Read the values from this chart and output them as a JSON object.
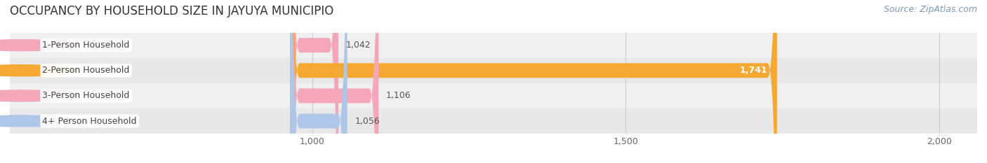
{
  "title": "OCCUPANCY BY HOUSEHOLD SIZE IN JAYUYA MUNICIPIO",
  "source": "Source: ZipAtlas.com",
  "categories": [
    "1-Person Household",
    "2-Person Household",
    "3-Person Household",
    "4+ Person Household"
  ],
  "values": [
    1042,
    1741,
    1106,
    1056
  ],
  "bar_colors": [
    "#f4a7b9",
    "#f5a832",
    "#f4a7b9",
    "#aec6e8"
  ],
  "label_colors": [
    "#555555",
    "#ffffff",
    "#555555",
    "#555555"
  ],
  "x_min": 950,
  "x_max": 2060,
  "x_ticks": [
    1000,
    1500,
    2000
  ],
  "x_tick_labels": [
    "1,000",
    "1,500",
    "2,000"
  ],
  "bar_height": 0.58,
  "title_fontsize": 12,
  "label_fontsize": 9,
  "value_fontsize": 9,
  "source_fontsize": 9,
  "tick_fontsize": 9,
  "row_colors": [
    "#f0f0f0",
    "#e8e8e8",
    "#f0f0f0",
    "#e8e8e8"
  ]
}
